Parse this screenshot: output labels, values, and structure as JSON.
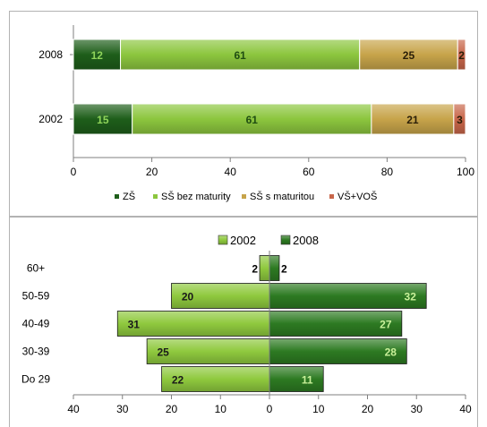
{
  "chart_data": [
    {
      "type": "bar",
      "orientation": "horizontal",
      "stacked": true,
      "categories": [
        "2008",
        "2002"
      ],
      "series": [
        {
          "name": "ZŠ",
          "values": [
            12,
            15
          ],
          "color": "#1e5e1a"
        },
        {
          "name": "SŠ bez maturity",
          "values": [
            61,
            61
          ],
          "color": "#8cc63e"
        },
        {
          "name": "SŠ s maturitou",
          "values": [
            25,
            21
          ],
          "color": "#c7a44a"
        },
        {
          "name": "VŠ+VOŠ",
          "values": [
            2,
            3
          ],
          "color": "#c8664a"
        }
      ],
      "data_labels": [
        [
          "12",
          "61",
          "25",
          "2"
        ],
        [
          "15",
          "61",
          "21",
          "3"
        ]
      ],
      "xlim": [
        0,
        100
      ],
      "xticks": [
        "0",
        "20",
        "40",
        "60",
        "80",
        "100"
      ],
      "grid": false,
      "legend_position": "bottom"
    },
    {
      "type": "bar",
      "orientation": "horizontal",
      "subtype": "population-pyramid",
      "categories": [
        "60+",
        "50-59",
        "40-49",
        "30-39",
        "Do 29"
      ],
      "series": [
        {
          "name": "2002",
          "values": [
            2,
            20,
            31,
            25,
            22
          ],
          "side": "left",
          "color": "#8fc93e"
        },
        {
          "name": "2008",
          "values": [
            2,
            32,
            27,
            28,
            11
          ],
          "side": "right",
          "color": "#2d7a22"
        }
      ],
      "xlim": [
        -40,
        40
      ],
      "xticks": [
        "40",
        "30",
        "20",
        "10",
        "0",
        "10",
        "20",
        "30",
        "40"
      ],
      "grid": false,
      "legend_position": "top"
    }
  ]
}
